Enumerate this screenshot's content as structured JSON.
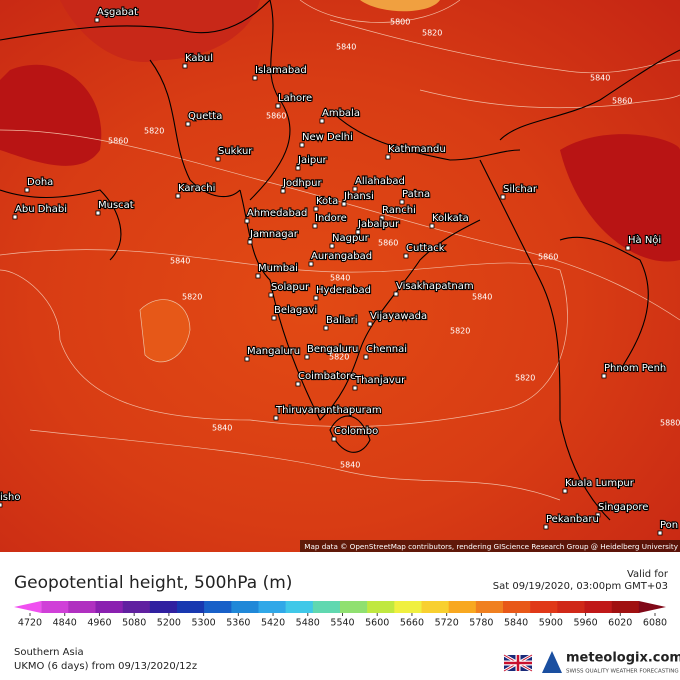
{
  "map": {
    "cities": [
      "Aşgabat",
      "Kabul",
      "Islamabad",
      "Lahore",
      "Quetta",
      "Ambala",
      "New Delhi",
      "Sukkur",
      "Kathmandu",
      "Jaipur",
      "Karachi",
      "Jodhpur",
      "Allahabad",
      "Patna",
      "Silchar",
      "Doha",
      "Jhansi",
      "Kota",
      "Abu Dhabi",
      "Muscat",
      "Ahmedabad",
      "Indore",
      "Ranchi",
      "Jabalpur",
      "Kolkata",
      "Jamnagar",
      "Nagpur",
      "Cuttack",
      "Hà Nội",
      "Aurangabad",
      "Mumbai",
      "Solapur",
      "Hyderabad",
      "Visakhapatnam",
      "Belagavi",
      "Ballari",
      "Vijayawada",
      "Mangaluru",
      "Bengaluru",
      "Chennai",
      "Phnom Penh",
      "Coimbatore",
      "Thanjavur",
      "Thiruvananthapuram",
      "Colombo",
      "Kuala Lumpur",
      "Singapore",
      "Pekanbaru",
      "Pon",
      "isho"
    ],
    "contour_labels": [
      "5800",
      "5820",
      "5840",
      "5840",
      "5860",
      "5860",
      "5820",
      "5860",
      "5840",
      "5860",
      "5860",
      "5840",
      "5840",
      "5820",
      "5820",
      "5820",
      "5840",
      "5840",
      "5820",
      "5880"
    ],
    "attribution": "Map data © OpenStreetMap contributors, rendering GIScience Research Group @ Heidelberg University"
  },
  "legend": {
    "title": "Geopotential height, 500hPa (m)",
    "valid_label": "Valid for",
    "valid_time": "Sat 09/19/2020, 03:00pm GMT+03",
    "region": "Southern Asia",
    "model": "UKMO (6 days) from 09/13/2020/12z",
    "brand": "meteologix.com",
    "tagline": "SWISS QUALITY WEATHER FORECASTING",
    "ticks": [
      4720,
      4840,
      4960,
      5080,
      5200,
      5300,
      5360,
      5420,
      5480,
      5540,
      5600,
      5660,
      5720,
      5780,
      5840,
      5900,
      5960,
      6020,
      6080
    ],
    "colors": [
      "#f050f0",
      "#d040d8",
      "#b030c0",
      "#8a20b0",
      "#6020a0",
      "#3020a0",
      "#1838b0",
      "#1860c8",
      "#2088d8",
      "#30a8e8",
      "#40c8e8",
      "#60d8b0",
      "#90e070",
      "#c0e840",
      "#f0f040",
      "#f8d030",
      "#f8a820",
      "#f08020",
      "#e85818",
      "#e03818",
      "#d02818",
      "#c01818",
      "#a01010",
      "#800818"
    ]
  }
}
